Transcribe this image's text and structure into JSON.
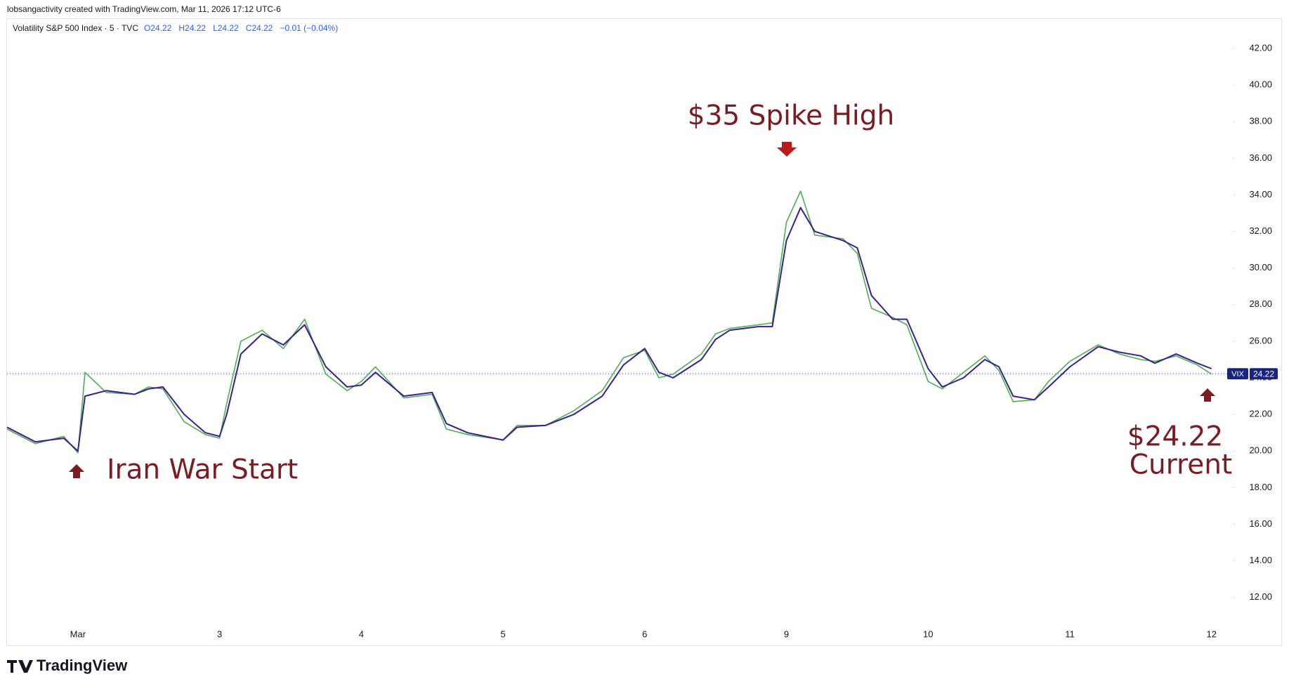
{
  "chart_data": {
    "type": "line",
    "credit": "lobsangactivity created with TradingView.com, Mar 11, 2026 17:12 UTC-6",
    "symbol": "Volatility S&P 500 Index · 5 · TVC",
    "ohlc": [
      "O24.22",
      "H24.22",
      "L24.22",
      "C24.22",
      "−0.01 (−0.04%)"
    ],
    "brand": "TradingView",
    "ticker": "VIX",
    "last_price": 24.22,
    "annotations": [
      "$35 Spike High",
      "Iran War Start",
      "$24.22",
      "Current"
    ],
    "x": [
      -0.5,
      -0.3,
      -0.1,
      0,
      0.05,
      0.2,
      0.4,
      0.5,
      0.6,
      0.75,
      0.9,
      1,
      1.05,
      1.15,
      1.3,
      1.45,
      1.6,
      1.75,
      1.9,
      2,
      2.1,
      2.3,
      2.5,
      2.6,
      2.75,
      3,
      3.1,
      3.3,
      3.5,
      3.7,
      3.85,
      4,
      4.1,
      4.2,
      4.4,
      4.5,
      4.6,
      4.8,
      4.9,
      5,
      5.1,
      5.2,
      5.4,
      5.5,
      5.6,
      5.75,
      5.85,
      6,
      6.1,
      6.25,
      6.4,
      6.5,
      6.6,
      6.75,
      6.85,
      7,
      7.2,
      7.35,
      7.5,
      7.6,
      7.75,
      7.9,
      8
    ],
    "series": [
      {
        "color": "#4caf50",
        "values": [
          21.2,
          20.4,
          20.8,
          19.9,
          24.3,
          23.2,
          23.1,
          23.5,
          23.4,
          21.6,
          20.9,
          20.7,
          22.6,
          26.0,
          26.6,
          25.6,
          27.2,
          24.2,
          23.3,
          23.8,
          24.6,
          22.9,
          23.1,
          21.2,
          20.9,
          20.6,
          21.4,
          21.4,
          22.2,
          23.3,
          25.1,
          25.5,
          24.0,
          24.2,
          25.3,
          26.4,
          26.7,
          26.9,
          27.0,
          32.5,
          34.2,
          31.8,
          31.6,
          30.8,
          27.8,
          27.3,
          26.9,
          23.8,
          23.4,
          24.3,
          25.2,
          24.4,
          22.7,
          22.8,
          23.8,
          24.9,
          25.8,
          25.3,
          25.0,
          24.9,
          25.2,
          24.7,
          24.2
        ]
      },
      {
        "color": "#3c1f8f",
        "values": [
          21.3,
          20.5,
          20.7,
          20.0,
          23.0,
          23.3,
          23.1,
          23.4,
          23.5,
          22.0,
          21.0,
          20.8,
          22.0,
          25.3,
          26.4,
          25.8,
          26.9,
          24.6,
          23.5,
          23.6,
          24.3,
          23.0,
          23.2,
          21.5,
          21.0,
          20.6,
          21.3,
          21.4,
          22.0,
          23.0,
          24.7,
          25.6,
          24.3,
          24.0,
          25.0,
          26.1,
          26.6,
          26.8,
          26.8,
          31.5,
          33.3,
          32.0,
          31.5,
          31.1,
          28.5,
          27.2,
          27.2,
          24.5,
          23.5,
          24.0,
          25.0,
          24.6,
          23.0,
          22.8,
          23.5,
          24.6,
          25.7,
          25.4,
          25.2,
          24.8,
          25.3,
          24.8,
          24.5
        ]
      }
    ],
    "xlim": [
      -0.5,
      8.15
    ],
    "xticks": [
      {
        "value": 0,
        "label": "Mar"
      },
      {
        "value": 1,
        "label": "3"
      },
      {
        "value": 2,
        "label": "4"
      },
      {
        "value": 3,
        "label": "5"
      },
      {
        "value": 4,
        "label": "6"
      },
      {
        "value": 5,
        "label": "9"
      },
      {
        "value": 6,
        "label": "10"
      },
      {
        "value": 7,
        "label": "11"
      },
      {
        "value": 8,
        "label": "12"
      }
    ],
    "ylim": [
      10.3,
      43.65
    ],
    "yticks": [
      {
        "value": 12,
        "label": "12.00"
      },
      {
        "value": 14,
        "label": "14.00"
      },
      {
        "value": 16,
        "label": "16.00"
      },
      {
        "value": 18,
        "label": "18.00"
      },
      {
        "value": 20,
        "label": "20.00"
      },
      {
        "value": 22,
        "label": "22.00"
      },
      {
        "value": 24,
        "label": "24.00"
      },
      {
        "value": 26,
        "label": "26.00"
      },
      {
        "value": 28,
        "label": "28.00"
      },
      {
        "value": 30,
        "label": "30.00"
      },
      {
        "value": 32,
        "label": "32.00"
      },
      {
        "value": 34,
        "label": "34.00"
      },
      {
        "value": 36,
        "label": "36.00"
      },
      {
        "value": 38,
        "label": "38.00"
      },
      {
        "value": 40,
        "label": "40.00"
      },
      {
        "value": 42,
        "label": "42.00"
      }
    ],
    "grid": false
  }
}
